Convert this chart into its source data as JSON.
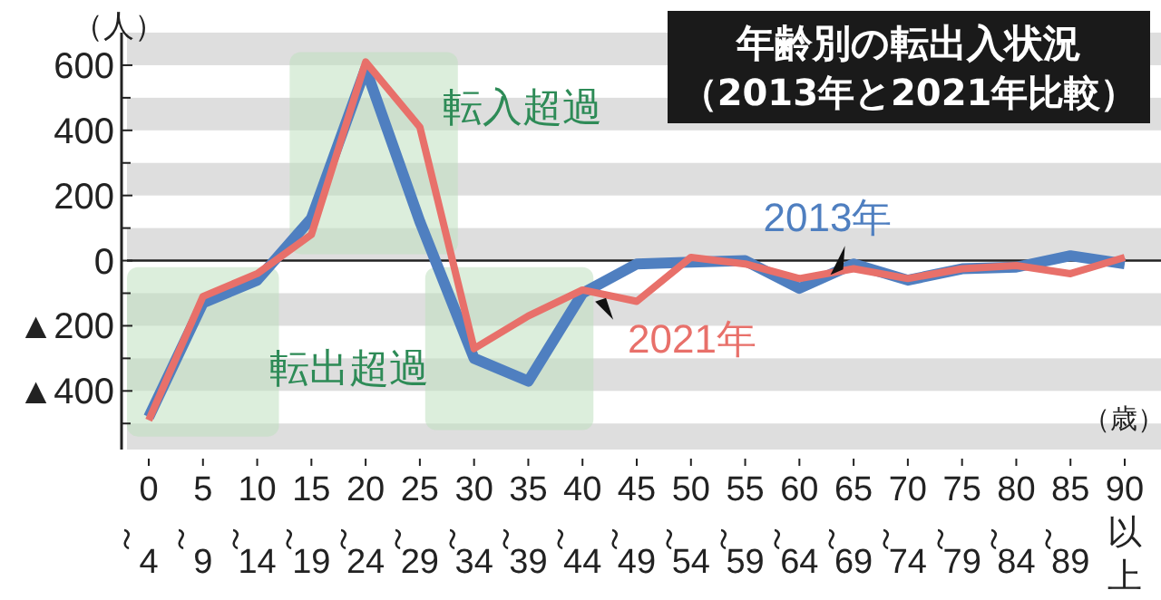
{
  "chart_data": {
    "type": "line",
    "title": "年齢別の転出入状況",
    "subtitle": "（2013年と2021年比較）",
    "ylabel": "（人）",
    "xlabel": "（歳）",
    "categories": [
      "0～4",
      "5～9",
      "10～14",
      "15～19",
      "20～24",
      "25～29",
      "30～34",
      "35～39",
      "40～44",
      "45～49",
      "50～54",
      "55～59",
      "60～64",
      "65～69",
      "70～74",
      "75～79",
      "80～84",
      "85～89",
      "90以上"
    ],
    "series": [
      {
        "name": "2013年",
        "color": "#4f7fc0",
        "values": [
          -480,
          -130,
          -60,
          130,
          590,
          120,
          -300,
          -370,
          -100,
          -10,
          -5,
          0,
          -85,
          -10,
          -60,
          -25,
          -20,
          15,
          -10
        ]
      },
      {
        "name": "2021年",
        "color": "#e8706a",
        "values": [
          -490,
          -110,
          -40,
          80,
          610,
          410,
          -270,
          -170,
          -90,
          -125,
          10,
          -10,
          -55,
          -25,
          -55,
          -25,
          -15,
          -40,
          10
        ]
      }
    ],
    "ylim": [
      -580,
      700
    ],
    "yticks": [
      {
        "value": -400,
        "label": "▲400"
      },
      {
        "value": -200,
        "label": "▲200"
      },
      0,
      200,
      400,
      600
    ],
    "bands": [
      {
        "axis": "y",
        "from": 600,
        "to": 700,
        "color": "#dedede"
      },
      {
        "axis": "y",
        "from": 400,
        "to": 500,
        "color": "#dedede"
      },
      {
        "axis": "y",
        "from": 200,
        "to": 300,
        "color": "#dedede"
      },
      {
        "axis": "y",
        "from": 0,
        "to": 100,
        "color": "#dedede"
      },
      {
        "axis": "y",
        "from": -200,
        "to": -100,
        "color": "#dedede"
      },
      {
        "axis": "y",
        "from": -400,
        "to": -300,
        "color": "#dedede"
      },
      {
        "axis": "y",
        "from": -580,
        "to": -500,
        "color": "#dedede"
      }
    ],
    "marker": "none",
    "line_style": "solid",
    "annotations": [
      "転入超過",
      "転出超過"
    ]
  }
}
